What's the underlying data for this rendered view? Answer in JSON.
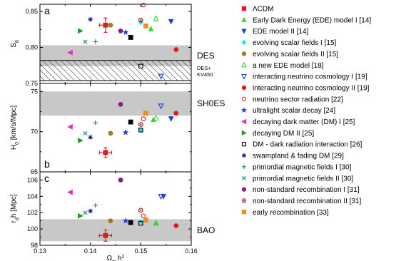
{
  "chart_data": {
    "type": "scatter",
    "x_axis": {
      "label_main": "Ω",
      "label_sub": "m",
      "label_tail": "h",
      "label_sup": "2",
      "range": [
        0.13,
        0.16
      ],
      "ticks": [
        "0.13",
        "0.14",
        "0.15",
        "0.16"
      ],
      "tick_values": [
        0.13,
        0.14,
        0.15,
        0.16
      ]
    },
    "legend_placement": "right",
    "legend": [
      {
        "key": "lcdm",
        "label": "ΛCDM",
        "color": "#e31a1c",
        "marker": "square"
      },
      {
        "key": "ede1",
        "label": "Early Dark Energy (EDE) model I [14]",
        "color": "#3bd43b",
        "marker": "triangle-up"
      },
      {
        "key": "ede2",
        "label": "EDE model II [14]",
        "color": "#1f3fd6",
        "marker": "triangle-down"
      },
      {
        "key": "esf1",
        "label": "evolving scalar fields I  [15]",
        "color": "#19e6e6",
        "marker": "diamond"
      },
      {
        "key": "esf2",
        "label": "evolving scalar fields II [15]",
        "color": "#a07d1a",
        "marker": "circle"
      },
      {
        "key": "newede",
        "label": "a new EDE model [18]",
        "color": "#3bd43b",
        "marker": "triangle-up-open"
      },
      {
        "key": "inc1",
        "label": "interacting neutrino cosmology I  [19]",
        "color": "#1f3fd6",
        "marker": "triangle-down-open"
      },
      {
        "key": "inc2",
        "label": "interacting neutrino cosmology II [19]",
        "color": "#e31a1c",
        "marker": "circle"
      },
      {
        "key": "nsr",
        "label": "neutrino sector radiation [22]",
        "color": "#e31a1c",
        "marker": "circle-open"
      },
      {
        "key": "usd",
        "label": "ultralight scalar decay [24]",
        "color": "#1f3fd6",
        "marker": "star"
      },
      {
        "key": "ddm1",
        "label": "decaying dark matter (DM) I [25]",
        "color": "#e52ad2",
        "marker": "triangle-left"
      },
      {
        "key": "ddm2",
        "label": "decaying DM II [25]",
        "color": "#1f9a1f",
        "marker": "triangle-right"
      },
      {
        "key": "dmdr",
        "label": "DM - dark radiation interaction [26]",
        "color": "#000000",
        "marker": "square-open"
      },
      {
        "key": "swamp",
        "label": "swampland & fading DM [29]",
        "color": "#1a1aa8",
        "marker": "asterisk"
      },
      {
        "key": "pmf1",
        "label": "primordial magnetic fields I  [30]",
        "color": "#1f9a1f",
        "marker": "plus"
      },
      {
        "key": "pmf2",
        "label": "primordial magnetic fields II [30]",
        "color": "#1a8a8a",
        "marker": "cross"
      },
      {
        "key": "nsrec1",
        "label": "non-standard recombination I  [31]",
        "color": "#8a1a8a",
        "marker": "circle"
      },
      {
        "key": "nsrec2",
        "label": "non-standard recombination II [31]",
        "color": "#8a1a1a",
        "marker": "circle-dot"
      },
      {
        "key": "erec",
        "label": "early recombination [33]",
        "color": "#f58c1a",
        "marker": "square"
      }
    ],
    "panels": [
      {
        "letter": "a",
        "y_label_main": "S",
        "y_label_sub": "8",
        "y_label_tail": "",
        "y_range": [
          0.75,
          0.86
        ],
        "y_ticks": [
          "0.75",
          "0.80",
          "0.85"
        ],
        "y_tick_values": [
          0.75,
          0.8,
          0.85
        ],
        "bands": [
          {
            "kind": "gray",
            "y0": 0.774,
            "y1": 0.803,
            "label": "DES"
          },
          {
            "kind": "hatch",
            "y0": 0.754,
            "y1": 0.782,
            "label": "DES+ KV450"
          }
        ],
        "points": [
          {
            "key": "lcdm",
            "x": 0.143,
            "y": 0.831,
            "xerr": 0.0012,
            "yerr": 0.01
          },
          {
            "key": "ede1",
            "x": 0.152,
            "y": 0.826
          },
          {
            "key": "ede2",
            "x": 0.156,
            "y": 0.836
          },
          {
            "key": "esf1",
            "x": 0.15,
            "y": 0.835
          },
          {
            "key": "esf2",
            "x": 0.144,
            "y": 0.831
          },
          {
            "key": "newede",
            "x": 0.153,
            "y": 0.84
          },
          {
            "key": "inc1",
            "x": 0.154,
            "y": 0.76
          },
          {
            "key": "inc2",
            "x": 0.157,
            "y": 0.797
          },
          {
            "key": "nsr",
            "x": 0.1505,
            "y": 0.859
          },
          {
            "key": "usd",
            "x": 0.147,
            "y": 0.821
          },
          {
            "key": "ddm1",
            "x": 0.136,
            "y": 0.793
          },
          {
            "key": "ddm2",
            "x": 0.138,
            "y": 0.823
          },
          {
            "key": "dmdr",
            "x": 0.15,
            "y": 0.774
          },
          {
            "key": "swamp",
            "x": 0.14,
            "y": 0.839
          },
          {
            "key": "pmf1",
            "x": 0.141,
            "y": 0.808
          },
          {
            "key": "pmf2",
            "x": 0.139,
            "y": 0.808
          },
          {
            "key": "nsrec1",
            "x": 0.146,
            "y": 0.823
          },
          {
            "key": "nsrec2",
            "x": 0.15,
            "y": 0.838
          },
          {
            "key": "erec",
            "x": 0.151,
            "y": 0.83
          },
          {
            "key": "dmdr_b",
            "marker_of": "dmdr",
            "x": 0.148,
            "y": 0.814,
            "filled": true
          }
        ]
      },
      {
        "letter": "b",
        "y_label_main": "H",
        "y_label_sub": "0",
        "y_label_tail": " [km/s/Mpc]",
        "y_range": [
          65,
          76
        ],
        "y_ticks": [
          "65",
          "70",
          "75"
        ],
        "y_tick_values": [
          65,
          70,
          75
        ],
        "bands": [
          {
            "kind": "gray",
            "y0": 72.0,
            "y1": 75.0,
            "label": "SH0ES"
          }
        ],
        "points": [
          {
            "key": "lcdm",
            "x": 0.143,
            "y": 67.4,
            "xerr": 0.0012,
            "yerr": 0.6
          },
          {
            "key": "ede1",
            "x": 0.1525,
            "y": 71.5
          },
          {
            "key": "ede2",
            "x": 0.156,
            "y": 71.6
          },
          {
            "key": "esf1",
            "x": 0.15,
            "y": 70.2
          },
          {
            "key": "esf2",
            "x": 0.144,
            "y": 69.8
          },
          {
            "key": "newede",
            "x": 0.153,
            "y": 71.7
          },
          {
            "key": "inc1",
            "x": 0.154,
            "y": 73.2
          },
          {
            "key": "inc2",
            "x": 0.157,
            "y": 72.3
          },
          {
            "key": "nsr",
            "x": 0.1505,
            "y": 71.6
          },
          {
            "key": "usd",
            "x": 0.147,
            "y": 69.9
          },
          {
            "key": "ddm1",
            "x": 0.136,
            "y": 70.6
          },
          {
            "key": "ddm2",
            "x": 0.138,
            "y": 68.9
          },
          {
            "key": "dmdr",
            "x": 0.15,
            "y": 70.2
          },
          {
            "key": "swamp",
            "x": 0.14,
            "y": 69.3
          },
          {
            "key": "pmf1",
            "x": 0.141,
            "y": 71.1
          },
          {
            "key": "pmf2",
            "x": 0.139,
            "y": 69.8
          },
          {
            "key": "nsrec1",
            "x": 0.146,
            "y": 73.4
          },
          {
            "key": "nsrec2",
            "x": 0.15,
            "y": 70.9
          },
          {
            "key": "erec",
            "x": 0.151,
            "y": 72.3
          },
          {
            "key": "dmdr_b",
            "marker_of": "dmdr",
            "x": 0.148,
            "y": 71.2,
            "filled": true
          }
        ]
      },
      {
        "letter": "c",
        "y_label_main": "r",
        "y_label_sub": "d",
        "y_label_tail": "h [Mpc]",
        "y_range": [
          98,
          107
        ],
        "y_ticks": [
          "98",
          "100",
          "102",
          "104",
          "106"
        ],
        "y_tick_values": [
          98,
          100,
          102,
          104,
          106
        ],
        "bands": [
          {
            "kind": "gray",
            "y0": 98.5,
            "y1": 101.2,
            "label": "BAO"
          }
        ],
        "points": [
          {
            "key": "lcdm",
            "x": 0.143,
            "y": 99.2,
            "xerr": 0.0012,
            "yerr": 0.7
          },
          {
            "key": "ede1",
            "x": 0.153,
            "y": 100.8
          },
          {
            "key": "ede2",
            "x": 0.1545,
            "y": 104.0
          },
          {
            "key": "esf1",
            "x": 0.15,
            "y": 100.9
          },
          {
            "key": "esf2",
            "x": 0.144,
            "y": 101.0
          },
          {
            "key": "newede",
            "x": 0.153,
            "y": 100.7
          },
          {
            "key": "inc1",
            "x": 0.154,
            "y": 104.0
          },
          {
            "key": "inc2",
            "x": 0.157,
            "y": 100.4
          },
          {
            "key": "nsr",
            "x": 0.1505,
            "y": 101.6
          },
          {
            "key": "usd",
            "x": 0.147,
            "y": 101.0
          },
          {
            "key": "ddm1",
            "x": 0.136,
            "y": 104.5
          },
          {
            "key": "ddm2",
            "x": 0.138,
            "y": 101.6
          },
          {
            "key": "dmdr",
            "x": 0.15,
            "y": 100.7
          },
          {
            "key": "swamp",
            "x": 0.14,
            "y": 102.2
          },
          {
            "key": "pmf1",
            "x": 0.141,
            "y": 102.9
          },
          {
            "key": "pmf2",
            "x": 0.139,
            "y": 102.0
          },
          {
            "key": "nsrec1",
            "x": 0.146,
            "y": 106.0
          },
          {
            "key": "nsrec2",
            "x": 0.15,
            "y": 102.3
          },
          {
            "key": "erec",
            "x": 0.151,
            "y": 101.1
          },
          {
            "key": "dmdr_b",
            "marker_of": "dmdr",
            "x": 0.148,
            "y": 100.8,
            "filled": true
          }
        ]
      }
    ]
  }
}
